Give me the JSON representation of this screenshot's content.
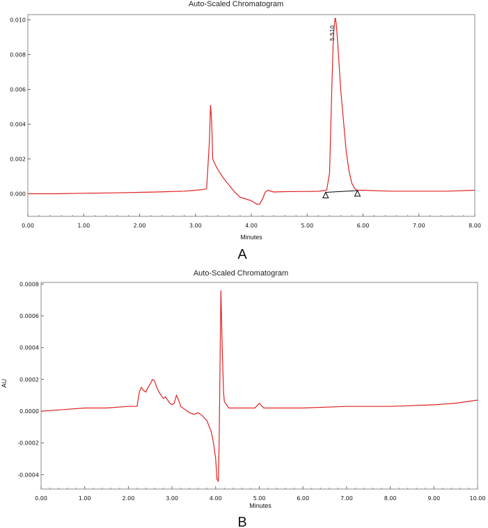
{
  "chart_data": [
    {
      "type": "line",
      "title": "Auto-Scaled Chromatogram",
      "xlabel": "Minutes",
      "ylabel": "",
      "panel_label": "A",
      "xlim": [
        0,
        8
      ],
      "ylim": [
        -0.0013,
        0.0103
      ],
      "xticks": [
        "0.00",
        "1.00",
        "2.00",
        "3.00",
        "4.00",
        "5.00",
        "6.00",
        "7.00",
        "8.00"
      ],
      "yticks": [
        "0.000",
        "0.002",
        "0.004",
        "0.006",
        "0.008",
        "0.010"
      ],
      "ytick_values": [
        0,
        0.002,
        0.004,
        0.006,
        0.008,
        0.01
      ],
      "series": [
        {
          "color": "#e02020",
          "x": [
            0.0,
            0.5,
            1.0,
            1.5,
            2.0,
            2.3,
            2.5,
            2.8,
            3.0,
            3.15,
            3.2,
            3.25,
            3.27,
            3.29,
            3.31,
            3.35,
            3.4,
            3.5,
            3.6,
            3.7,
            3.8,
            3.9,
            4.0,
            4.1,
            4.15,
            4.2,
            4.25,
            4.3,
            4.4,
            4.6,
            4.8,
            5.0,
            5.2,
            5.35,
            5.4,
            5.44,
            5.47,
            5.5,
            5.52,
            5.55,
            5.6,
            5.65,
            5.7,
            5.75,
            5.8,
            5.85,
            5.9,
            6.0,
            6.5,
            7.0,
            7.5,
            8.0
          ],
          "y": [
            0.0,
            0.0,
            3e-05,
            5e-05,
            8e-05,
            0.0001,
            0.00012,
            0.00015,
            0.0002,
            0.00025,
            0.0003,
            0.003,
            0.0051,
            0.0042,
            0.002,
            0.0017,
            0.0014,
            0.0009,
            0.0005,
            0.0001,
            -0.0002,
            -0.0003,
            -0.0004,
            -0.0006,
            -0.0006,
            -0.0003,
            0.0001,
            0.0002,
            0.0001,
            0.00012,
            0.00013,
            0.00013,
            0.00014,
            0.0002,
            0.0012,
            0.006,
            0.0092,
            0.0101,
            0.0098,
            0.0085,
            0.006,
            0.0042,
            0.0024,
            0.0013,
            0.0006,
            0.0003,
            0.0002,
            0.0002,
            0.00015,
            0.00015,
            0.00015,
            0.0002
          ]
        }
      ],
      "annotations": [
        {
          "type": "peak-label",
          "text": "5.510",
          "x": 5.51,
          "y": 0.0101
        },
        {
          "type": "integration-marker",
          "x": 5.33,
          "y": 0.0
        },
        {
          "type": "integration-marker",
          "x": 5.9,
          "y": 0.0001
        }
      ]
    },
    {
      "type": "line",
      "title": "Auto-Scaled Chromatogram",
      "xlabel": "Minutes",
      "ylabel": "AU",
      "panel_label": "B",
      "xlim": [
        0,
        10
      ],
      "ylim": [
        -0.00049,
        0.00081
      ],
      "xticks": [
        "0.00",
        "1.00",
        "2.00",
        "3.00",
        "4.00",
        "5.00",
        "6.00",
        "7.00",
        "8.00",
        "9.00",
        "10.00"
      ],
      "yticks": [
        "-0.0004",
        "-0.0002",
        "0.0000",
        "0.0002",
        "0.0004",
        "0.0006",
        "0.0008"
      ],
      "ytick_values": [
        -0.0004,
        -0.0002,
        0,
        0.0002,
        0.0004,
        0.0006,
        0.0008
      ],
      "series": [
        {
          "color": "#e02020",
          "x": [
            0.0,
            0.5,
            1.0,
            1.5,
            2.0,
            2.2,
            2.25,
            2.3,
            2.35,
            2.4,
            2.45,
            2.5,
            2.55,
            2.6,
            2.65,
            2.7,
            2.75,
            2.8,
            2.85,
            2.9,
            2.95,
            3.0,
            3.05,
            3.1,
            3.15,
            3.2,
            3.3,
            3.4,
            3.5,
            3.6,
            3.7,
            3.8,
            3.9,
            3.95,
            4.0,
            4.03,
            4.06,
            4.08,
            4.1,
            4.12,
            4.15,
            4.18,
            4.2,
            4.25,
            4.3,
            4.4,
            4.5,
            4.7,
            4.9,
            5.0,
            5.1,
            5.3,
            5.6,
            6.0,
            7.0,
            8.0,
            9.0,
            9.5,
            10.0
          ],
          "y": [
            0.0,
            1e-05,
            2e-05,
            2e-05,
            3e-05,
            3e-05,
            0.00012,
            0.00015,
            0.00013,
            0.00012,
            0.00015,
            0.00017,
            0.0002,
            0.00019,
            0.00015,
            0.00012,
            0.0001,
            8e-05,
            9e-05,
            7e-05,
            5e-05,
            4e-05,
            5e-05,
            0.0001,
            7e-05,
            3e-05,
            1e-05,
            -1e-05,
            -2e-05,
            -1e-05,
            -3e-05,
            -6e-05,
            -0.00013,
            -0.0002,
            -0.0003,
            -0.00043,
            -0.00044,
            -0.0002,
            0.0003,
            0.00076,
            0.0004,
            0.00012,
            6e-05,
            4e-05,
            2e-05,
            2e-05,
            2e-05,
            2e-05,
            2e-05,
            5e-05,
            2e-05,
            2e-05,
            2e-05,
            2e-05,
            3e-05,
            3e-05,
            4e-05,
            5e-05,
            7e-05
          ]
        }
      ]
    }
  ]
}
